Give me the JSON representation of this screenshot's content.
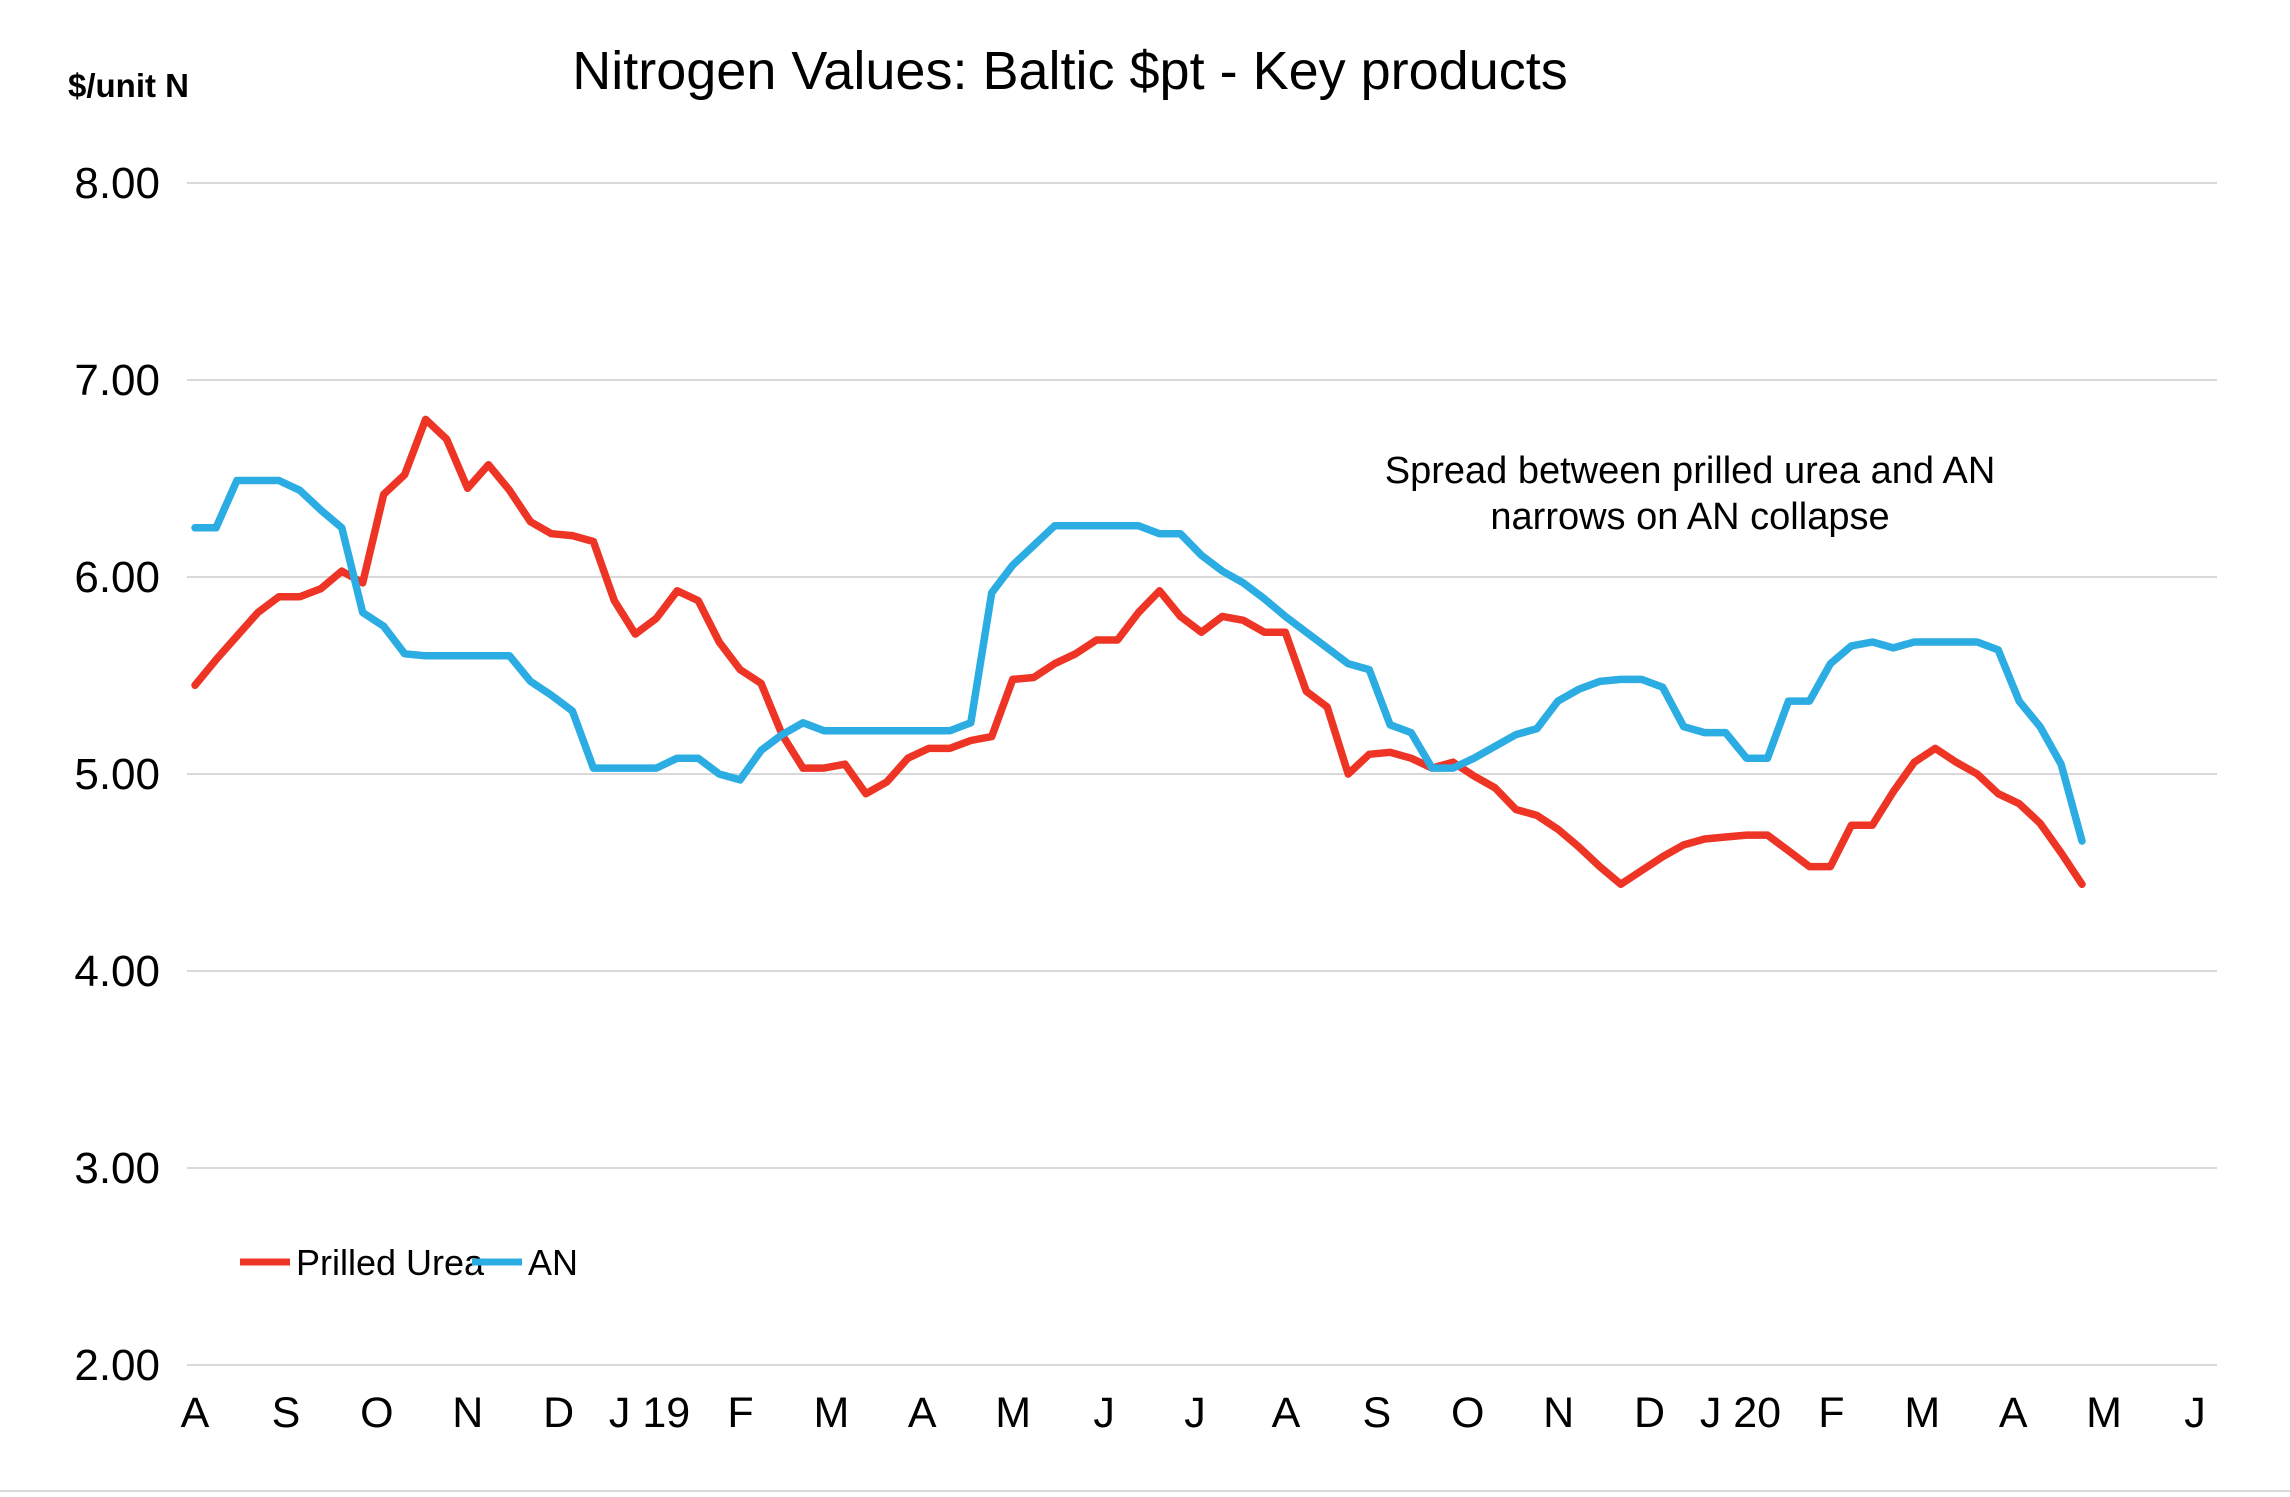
{
  "page": {
    "background": "#ffffff"
  },
  "header": {
    "title": "Nitrogen Values: Baltic $pt - Key products",
    "y_axis_unit": "$/unit N"
  },
  "annotation": {
    "line1": "Spread between prilled urea and AN",
    "line2": "narrows on AN collapse"
  },
  "legend": [
    {
      "label": "Prilled Urea",
      "color": "#EE3424"
    },
    {
      "label": "AN",
      "color": "#2BACE2"
    }
  ],
  "colors": {
    "prilled_urea": "#EE3424",
    "an": "#2BACE2",
    "gridline": "#D9D9D9",
    "text": "#000000"
  },
  "chart_data": {
    "type": "line",
    "title": "Nitrogen Values: Baltic $pt - Key products",
    "xlabel": "",
    "ylabel": "$/unit N",
    "ylim": [
      2.0,
      8.0
    ],
    "ytick_step": 1.0,
    "ytick_labels": [
      "8.00",
      "7.00",
      "6.00",
      "5.00",
      "4.00",
      "3.00",
      "2.00"
    ],
    "ytick_values": [
      8.0,
      7.0,
      6.0,
      5.0,
      4.0,
      3.0,
      2.0
    ],
    "grid": "horizontal",
    "x_frequency": "weekly",
    "x_range_note": "Aug 2018 to mid-May 2020, one value per week",
    "month_tick_labels": [
      "A",
      "S",
      "O",
      "N",
      "D",
      "J 19",
      "F",
      "M",
      "A",
      "M",
      "J",
      "J",
      "A",
      "S",
      "O",
      "N",
      "D",
      "J 20",
      "F",
      "M",
      "A",
      "M",
      "J"
    ],
    "legend_position": "inside-bottom-left",
    "series": [
      {
        "name": "Prilled Urea",
        "color": "#EE3424",
        "values": [
          5.45,
          5.58,
          5.7,
          5.82,
          5.9,
          5.9,
          5.94,
          6.03,
          5.97,
          6.42,
          6.52,
          6.8,
          6.7,
          6.45,
          6.57,
          6.44,
          6.28,
          6.22,
          6.21,
          6.18,
          5.88,
          5.71,
          5.79,
          5.93,
          5.88,
          5.67,
          5.53,
          5.46,
          5.2,
          5.03,
          5.03,
          5.05,
          4.9,
          4.96,
          5.08,
          5.13,
          5.13,
          5.17,
          5.19,
          5.48,
          5.49,
          5.56,
          5.61,
          5.68,
          5.68,
          5.82,
          5.93,
          5.8,
          5.72,
          5.8,
          5.78,
          5.72,
          5.72,
          5.42,
          5.34,
          5.0,
          5.1,
          5.11,
          5.08,
          5.03,
          5.06,
          4.99,
          4.93,
          4.82,
          4.79,
          4.72,
          4.63,
          4.53,
          4.44,
          4.51,
          4.58,
          4.64,
          4.67,
          4.68,
          4.69,
          4.69,
          4.61,
          4.53,
          4.53,
          4.74,
          4.74,
          4.91,
          5.06,
          5.13,
          5.06,
          5.0,
          4.9,
          4.85,
          4.75,
          4.6,
          4.44
        ]
      },
      {
        "name": "AN",
        "color": "#2BACE2",
        "values": [
          6.25,
          6.25,
          6.49,
          6.49,
          6.49,
          6.44,
          6.34,
          6.25,
          5.82,
          5.75,
          5.61,
          5.6,
          5.6,
          5.6,
          5.6,
          5.6,
          5.47,
          5.4,
          5.32,
          5.03,
          5.03,
          5.03,
          5.03,
          5.08,
          5.08,
          5.0,
          4.97,
          5.12,
          5.2,
          5.26,
          5.22,
          5.22,
          5.22,
          5.22,
          5.22,
          5.22,
          5.22,
          5.26,
          5.92,
          6.06,
          6.16,
          6.26,
          6.26,
          6.26,
          6.26,
          6.26,
          6.22,
          6.22,
          6.11,
          6.03,
          5.97,
          5.89,
          5.8,
          5.72,
          5.64,
          5.56,
          5.53,
          5.25,
          5.21,
          5.03,
          5.03,
          5.08,
          5.14,
          5.2,
          5.23,
          5.37,
          5.43,
          5.47,
          5.48,
          5.48,
          5.44,
          5.24,
          5.21,
          5.21,
          5.08,
          5.08,
          5.37,
          5.37,
          5.56,
          5.65,
          5.67,
          5.64,
          5.67,
          5.67,
          5.67,
          5.67,
          5.63,
          5.37,
          5.24,
          5.05,
          4.66
        ]
      }
    ]
  }
}
